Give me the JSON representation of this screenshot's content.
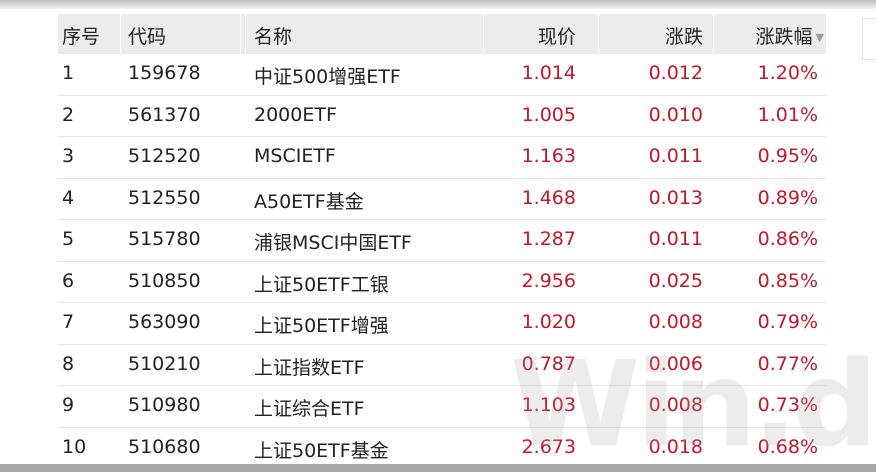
{
  "columns": [
    "序号",
    "代码",
    "名称",
    "现价",
    "涨跌",
    "涨跌幅"
  ],
  "sort_indicator": "▼",
  "rows": [
    [
      "1",
      "159678",
      "中证500增强ETF",
      "1.014",
      "0.012",
      "1.20%"
    ],
    [
      "2",
      "561370",
      "2000ETF",
      "1.005",
      "0.010",
      "1.01%"
    ],
    [
      "3",
      "512520",
      "MSCIETF",
      "1.163",
      "0.011",
      "0.95%"
    ],
    [
      "4",
      "512550",
      "A50ETF基金",
      "1.468",
      "0.013",
      "0.89%"
    ],
    [
      "5",
      "515780",
      "浦银MSCI中国ETF",
      "1.287",
      "0.011",
      "0.86%"
    ],
    [
      "6",
      "510850",
      "上证50ETF工银",
      "2.956",
      "0.025",
      "0.85%"
    ],
    [
      "7",
      "563090",
      "上证50ETF增强",
      "1.020",
      "0.008",
      "0.79%"
    ],
    [
      "8",
      "510210",
      "上证指数ETF",
      "0.787",
      "0.006",
      "0.77%"
    ],
    [
      "9",
      "510980",
      "上证综合ETF",
      "1.103",
      "0.008",
      "0.73%"
    ],
    [
      "10",
      "510680",
      "上证50ETF基金",
      "2.673",
      "0.018",
      "0.68%"
    ]
  ],
  "watermark": "Wind",
  "colors": {
    "up": "#c0192a",
    "header_bg": "#ececec"
  }
}
